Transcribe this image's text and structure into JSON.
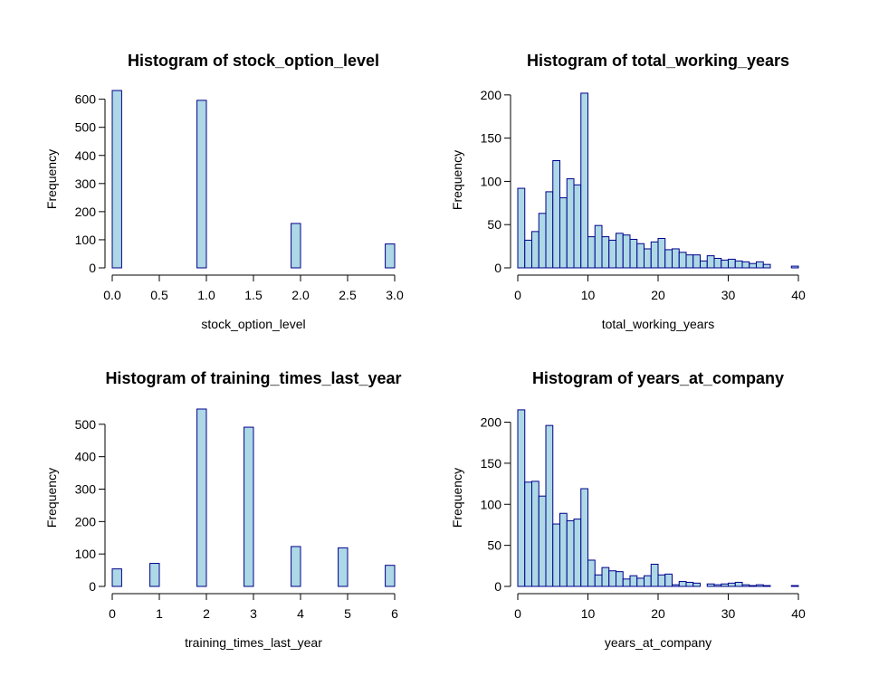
{
  "style": {
    "bar_fill": "#add8e6",
    "bar_stroke": "#00008b"
  },
  "chart_data": [
    {
      "type": "bar",
      "title": "Histogram of stock_option_level",
      "xlabel": "stock_option_level",
      "ylabel": "Frequency",
      "xlim": [
        0,
        3
      ],
      "ylim": [
        0,
        600
      ],
      "xticks": [
        0,
        0.5,
        1,
        1.5,
        2,
        2.5,
        3
      ],
      "xtick_labels": [
        "0.0",
        "0.5",
        "1.0",
        "1.5",
        "2.0",
        "2.5",
        "3.0"
      ],
      "yticks": [
        0,
        100,
        200,
        300,
        400,
        500,
        600
      ],
      "bin_width": 0.1,
      "bins": [
        {
          "x0": 0.0,
          "count": 631
        },
        {
          "x0": 0.9,
          "count": 596
        },
        {
          "x0": 1.9,
          "count": 158
        },
        {
          "x0": 2.9,
          "count": 85
        }
      ]
    },
    {
      "type": "bar",
      "title": "Histogram of total_working_years",
      "xlabel": "total_working_years",
      "ylabel": "Frequency",
      "xlim": [
        0,
        40
      ],
      "ylim": [
        0,
        200
      ],
      "xticks": [
        0,
        10,
        20,
        30,
        40
      ],
      "xtick_labels": [
        "0",
        "10",
        "20",
        "30",
        "40"
      ],
      "yticks": [
        0,
        50,
        100,
        150,
        200
      ],
      "bin_width": 1,
      "values": [
        92,
        32,
        42,
        63,
        88,
        124,
        81,
        103,
        96,
        202,
        36,
        49,
        36,
        32,
        40,
        38,
        33,
        28,
        22,
        30,
        34,
        21,
        22,
        18,
        15,
        15,
        8,
        14,
        11,
        9,
        10,
        8,
        7,
        5,
        7,
        4,
        0,
        0,
        0,
        2
      ]
    },
    {
      "type": "bar",
      "title": "Histogram of training_times_last_year",
      "xlabel": "training_times_last_year",
      "ylabel": "Frequency",
      "xlim": [
        0,
        6
      ],
      "ylim": [
        0,
        500
      ],
      "xticks": [
        0,
        1,
        2,
        3,
        4,
        5,
        6
      ],
      "xtick_labels": [
        "0",
        "1",
        "2",
        "3",
        "4",
        "5",
        "6"
      ],
      "yticks": [
        0,
        100,
        200,
        300,
        400,
        500
      ],
      "bin_width": 0.2,
      "bins": [
        {
          "x0": 0.0,
          "count": 54
        },
        {
          "x0": 0.8,
          "count": 71
        },
        {
          "x0": 1.8,
          "count": 547
        },
        {
          "x0": 2.8,
          "count": 491
        },
        {
          "x0": 3.8,
          "count": 123
        },
        {
          "x0": 4.8,
          "count": 119
        },
        {
          "x0": 5.8,
          "count": 65
        }
      ]
    },
    {
      "type": "bar",
      "title": "Histogram of years_at_company",
      "xlabel": "years_at_company",
      "ylabel": "Frequency",
      "xlim": [
        0,
        40
      ],
      "ylim": [
        0,
        200
      ],
      "xticks": [
        0,
        10,
        20,
        30,
        40
      ],
      "xtick_labels": [
        "0",
        "10",
        "20",
        "30",
        "40"
      ],
      "yticks": [
        0,
        50,
        100,
        150,
        200
      ],
      "bin_width": 1,
      "values": [
        215,
        127,
        128,
        110,
        196,
        76,
        89,
        80,
        82,
        119,
        32,
        14,
        23,
        19,
        18,
        9,
        13,
        10,
        13,
        27,
        14,
        15,
        2,
        6,
        5,
        4,
        0,
        3,
        2,
        3,
        4,
        5,
        2,
        1,
        2,
        1,
        0,
        0,
        0,
        1
      ]
    }
  ]
}
